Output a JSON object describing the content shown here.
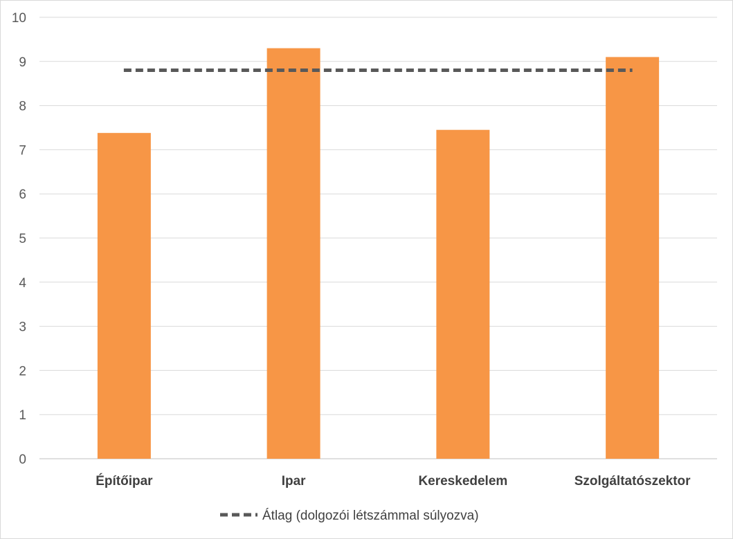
{
  "chart_data": {
    "type": "bar",
    "title": "",
    "xlabel": "",
    "ylabel": "",
    "categories": [
      "Építőipar",
      "Ipar",
      "Kereskedelem",
      "Szolgáltatószektor"
    ],
    "series": [
      {
        "name": "",
        "values": [
          7.38,
          9.3,
          7.45,
          9.1
        ],
        "color": "#f79646"
      }
    ],
    "reference_line": {
      "name": "Átlag (dolgozói létszámmal súlyozva)",
      "value": 8.8,
      "style": "dashed",
      "color": "#595959"
    },
    "ylim": [
      0,
      10
    ],
    "yticks": [
      "0",
      "1",
      "2",
      "3",
      "4",
      "5",
      "6",
      "7",
      "8",
      "9",
      "10"
    ],
    "grid": true,
    "legend": "bottom"
  }
}
